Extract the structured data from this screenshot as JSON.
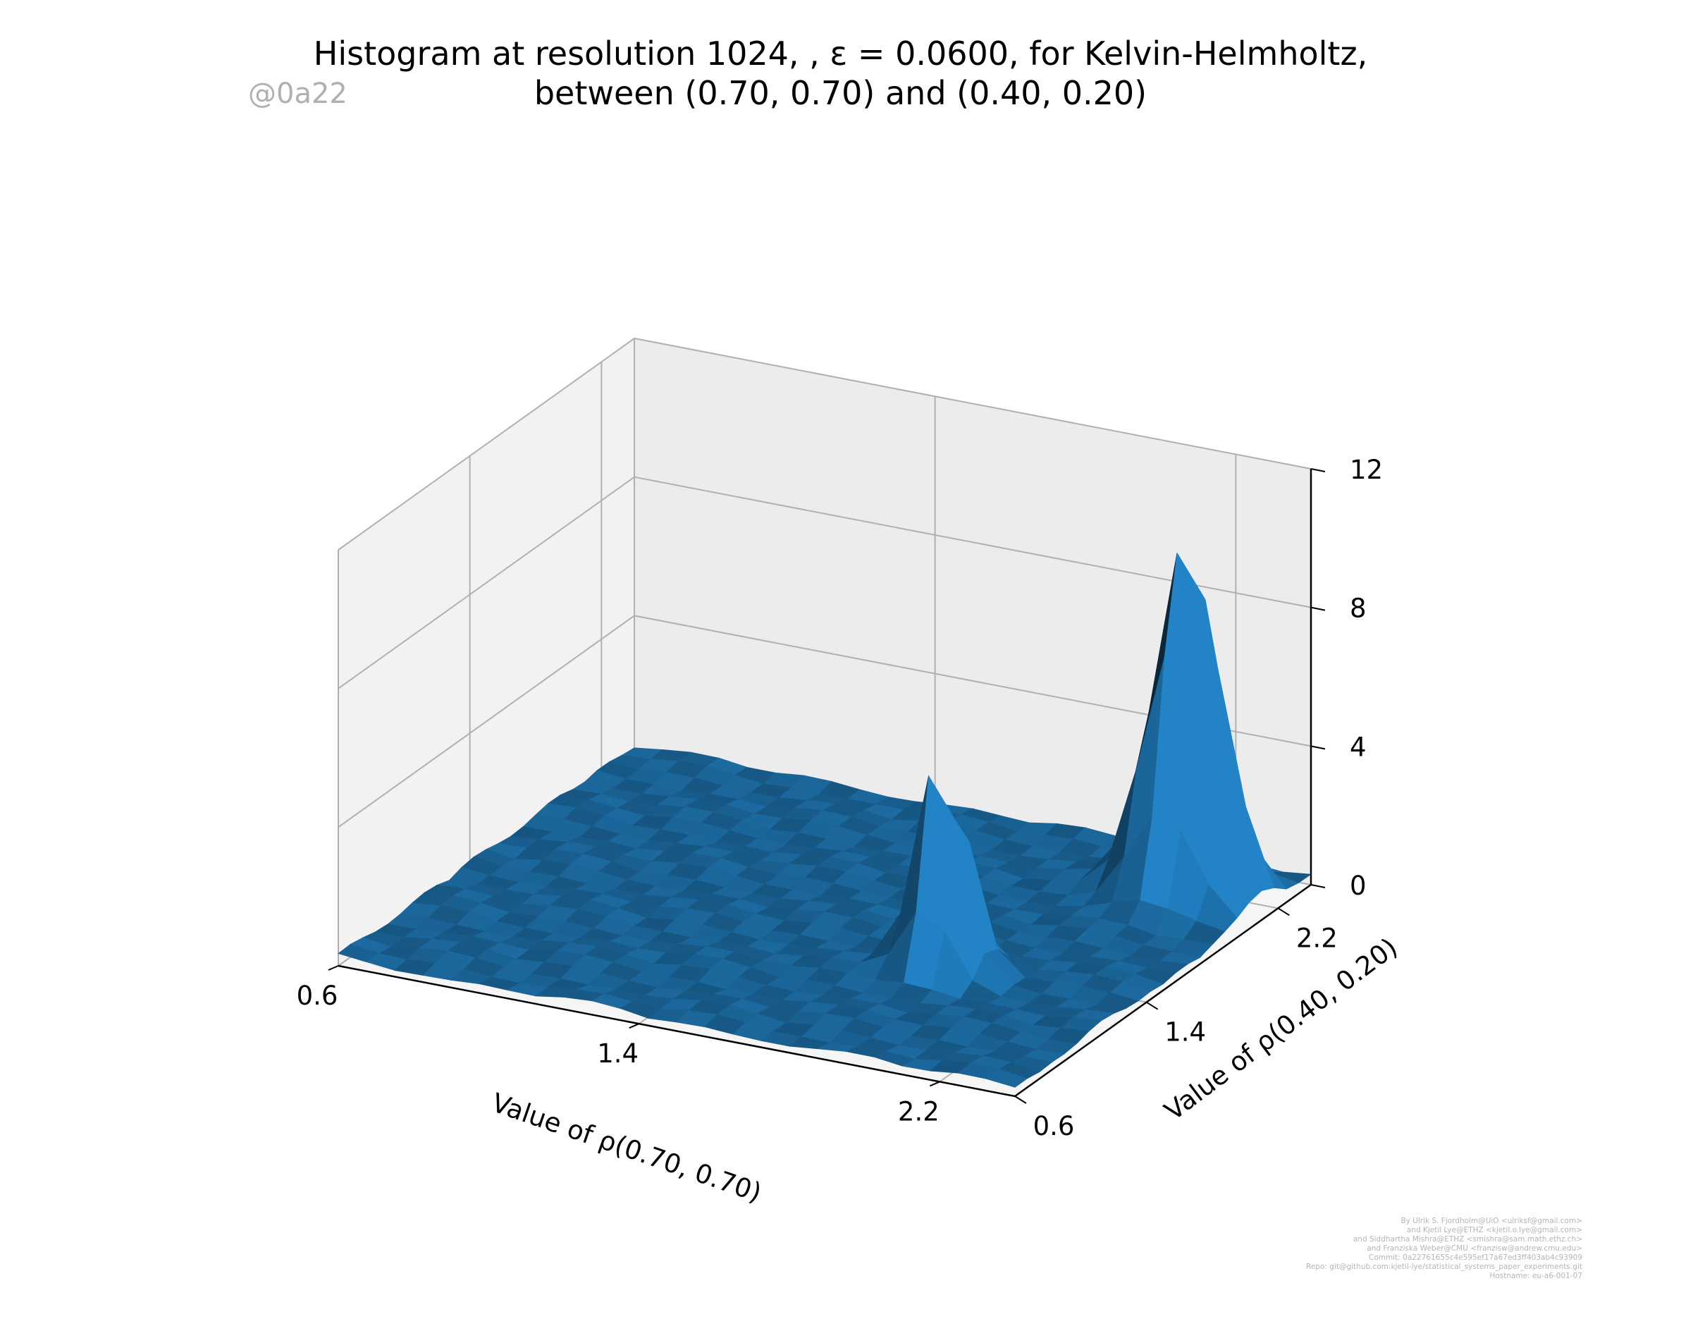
{
  "chart_data": {
    "type": "surface",
    "title_lines": [
      "Histogram at resolution 1024, , ε = 0.0600, for Kelvin-Helmholtz,",
      "between (0.70, 0.70) and (0.40, 0.20)"
    ],
    "xlabel": "Value of ρ(0.70, 0.70)",
    "ylabel": "Value of ρ(0.40, 0.20)",
    "x_ticks": [
      "0.6",
      "1.4",
      "2.2"
    ],
    "y_ticks": [
      "0.6",
      "1.4",
      "2.2"
    ],
    "z_ticks": [
      "0",
      "4",
      "8",
      "12"
    ],
    "xlim": [
      0.6,
      2.4
    ],
    "ylim": [
      0.6,
      2.4
    ],
    "zlim": [
      0,
      12
    ],
    "surface_color": "#1f77b4",
    "peaks": [
      {
        "x": 1.9,
        "y": 1.3,
        "z": 6.5
      },
      {
        "x": 2.2,
        "y": 2.1,
        "z": 10.3
      }
    ]
  },
  "watermark": "@0a22",
  "credits": [
    "By Ulrik S. Fjordholm@UiO <ulriksf@gmail.com>",
    "and Kjetil Lye@ETHZ <kjetil.o.lye@gmail.com>",
    "and Siddhartha Mishra@ETHZ <smishra@sam.math.ethz.ch>",
    "and Franziska Weber@CMU <franzisw@andrew.cmu.edu>",
    "Commit: 0a22761655c4e595ef17a67ed3ff403ab4c93909",
    "Repo: git@github.com:kjetil-lye/statistical_systems_paper_experiments.git",
    "Hostname: eu-a6-001-07"
  ]
}
